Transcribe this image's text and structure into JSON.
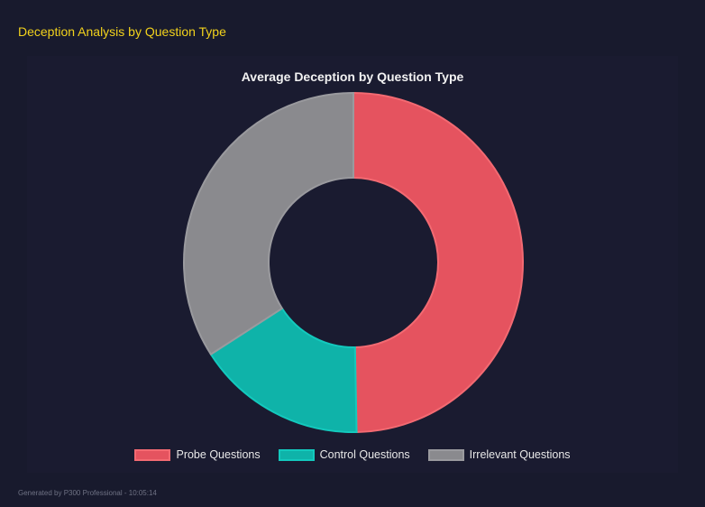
{
  "header": {
    "title": "Deception Analysis by Question Type"
  },
  "footer": {
    "text": "Generated by P300 Professional - 10:05:14"
  },
  "chart_data": {
    "type": "doughnut",
    "title": "Average Deception by Question Type",
    "categories": [
      "Probe Questions",
      "Control Questions",
      "Irrelevant Questions"
    ],
    "values": [
      49.7,
      16.2,
      34.1
    ],
    "colors": [
      "#e5535f",
      "#0fb3a9",
      "#8a8a8e"
    ],
    "border_colors": [
      "#f36a72",
      "#13c9bd",
      "#9a9a9e"
    ],
    "legend": "bottom"
  }
}
